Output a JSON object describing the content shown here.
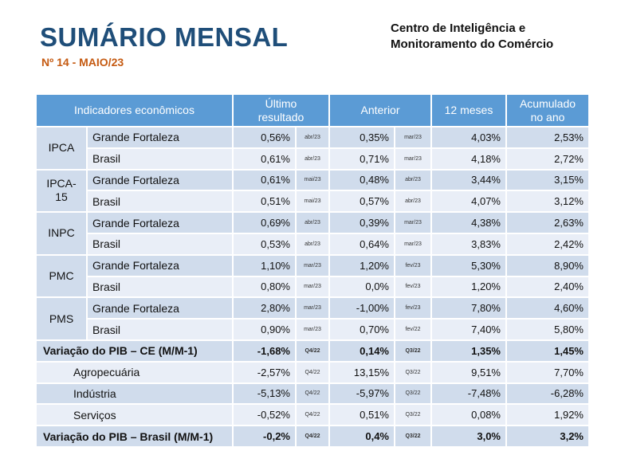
{
  "header": {
    "title": "SUMÁRIO MENSAL",
    "subtitle": "Nº 14 - MAIO/23",
    "org_line1": "Centro de Inteligência e",
    "org_line2": "Monitoramento do Comércio"
  },
  "table": {
    "columns": {
      "indicadores": "Indicadores econômicos",
      "ultimo_1": "Último",
      "ultimo_2": "resultado",
      "anterior": "Anterior",
      "doze": "12 meses",
      "acum_1": "Acumulado",
      "acum_2": "no ano"
    },
    "groups": [
      {
        "name": "IPCA",
        "rows": [
          {
            "label": "Grande Fortaleza",
            "ultimo": "0,56%",
            "ultimo_ref": "abr/23",
            "anterior": "0,35%",
            "anterior_ref": "mar/23",
            "doze": "4,03%",
            "acum": "2,53%"
          },
          {
            "label": "Brasil",
            "ultimo": "0,61%",
            "ultimo_ref": "abr/23",
            "anterior": "0,71%",
            "anterior_ref": "mar/23",
            "doze": "4,18%",
            "acum": "2,72%"
          }
        ]
      },
      {
        "name": "IPCA-15",
        "name_1": "IPCA-",
        "name_2": "15",
        "rows": [
          {
            "label": "Grande Fortaleza",
            "ultimo": "0,61%",
            "ultimo_ref": "mai/23",
            "anterior": "0,48%",
            "anterior_ref": "abr/23",
            "doze": "3,44%",
            "acum": "3,15%"
          },
          {
            "label": "Brasil",
            "ultimo": "0,51%",
            "ultimo_ref": "mai/23",
            "anterior": "0,57%",
            "anterior_ref": "abr/23",
            "doze": "4,07%",
            "acum": "3,12%"
          }
        ]
      },
      {
        "name": "INPC",
        "rows": [
          {
            "label": "Grande Fortaleza",
            "ultimo": "0,69%",
            "ultimo_ref": "abr/23",
            "anterior": "0,39%",
            "anterior_ref": "mar/23",
            "doze": "4,38%",
            "acum": "2,63%"
          },
          {
            "label": "Brasil",
            "ultimo": "0,53%",
            "ultimo_ref": "abr/23",
            "anterior": "0,64%",
            "anterior_ref": "mar/23",
            "doze": "3,83%",
            "acum": "2,42%"
          }
        ]
      },
      {
        "name": "PMC",
        "rows": [
          {
            "label": "Grande Fortaleza",
            "ultimo": "1,10%",
            "ultimo_ref": "mar/23",
            "anterior": "1,20%",
            "anterior_ref": "fev/23",
            "doze": "5,30%",
            "acum": "8,90%"
          },
          {
            "label": "Brasil",
            "ultimo": "0,80%",
            "ultimo_ref": "mar/23",
            "anterior": "0,0%",
            "anterior_ref": "fev/23",
            "doze": "1,20%",
            "acum": "2,40%"
          }
        ]
      },
      {
        "name": "PMS",
        "rows": [
          {
            "label": "Grande Fortaleza",
            "ultimo": "2,80%",
            "ultimo_ref": "mar/23",
            "anterior": "-1,00%",
            "anterior_ref": "fev/23",
            "doze": "7,80%",
            "acum": "4,60%"
          },
          {
            "label": "Brasil",
            "ultimo": "0,90%",
            "ultimo_ref": "mar/23",
            "anterior": "0,70%",
            "anterior_ref": "fev/22",
            "doze": "7,40%",
            "acum": "5,80%"
          }
        ]
      }
    ],
    "pib": [
      {
        "label": "Variação do PIB – CE (M/M-1)",
        "bold": true,
        "ultimo": "-1,68%",
        "ultimo_ref": "Q4/22",
        "anterior": "0,14%",
        "anterior_ref": "Q3/22",
        "doze": "1,35%",
        "acum": "1,45%"
      },
      {
        "label": "Agropecuária",
        "bold": false,
        "ultimo": "-2,57%",
        "ultimo_ref": "Q4/22",
        "anterior": "13,15%",
        "anterior_ref": "Q3/22",
        "doze": "9,51%",
        "acum": "7,70%"
      },
      {
        "label": "Indústria",
        "bold": false,
        "ultimo": "-5,13%",
        "ultimo_ref": "Q4/22",
        "anterior": "-5,97%",
        "anterior_ref": "Q3/22",
        "doze": "-7,48%",
        "acum": "-6,28%"
      },
      {
        "label": "Serviços",
        "bold": false,
        "ultimo": "-0,52%",
        "ultimo_ref": "Q4/22",
        "anterior": "0,51%",
        "anterior_ref": "Q3/22",
        "doze": "0,08%",
        "acum": "1,92%"
      },
      {
        "label": "Variação do PIB – Brasil (M/M-1)",
        "bold": true,
        "ultimo": "-0,2%",
        "ultimo_ref": "Q4/22",
        "anterior": "0,4%",
        "anterior_ref": "Q3/22",
        "doze": "3,0%",
        "acum": "3,2%"
      }
    ]
  }
}
